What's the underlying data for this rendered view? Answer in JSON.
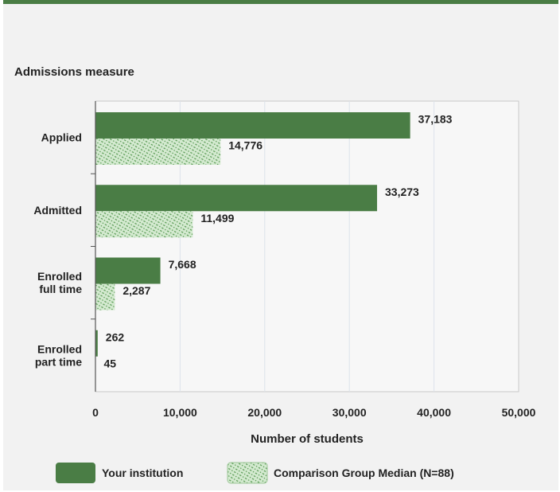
{
  "chart_data": {
    "type": "bar",
    "orientation": "horizontal",
    "title": "Admissions measure",
    "xlabel": "Number of students",
    "ylabel": "",
    "xlim": [
      0,
      50000
    ],
    "x_ticks": [
      "0",
      "10,000",
      "20,000",
      "30,000",
      "40,000",
      "50,000"
    ],
    "grid": true,
    "categories": [
      "Applied",
      "Admitted",
      "Enrolled full time",
      "Enrolled part time"
    ],
    "series": [
      {
        "name": "Your institution",
        "values": [
          37183,
          33273,
          7668,
          262
        ],
        "labels": [
          "37,183",
          "33,273",
          "7,668",
          "262"
        ],
        "color": "#4a7d45",
        "pattern": "solid"
      },
      {
        "name": "Comparison Group Median (N=88)",
        "values": [
          14776,
          11499,
          2287,
          45
        ],
        "labels": [
          "14,776",
          "11,499",
          "2,287",
          "45"
        ],
        "color": "#cfe8cb",
        "pattern": "hatched"
      }
    ],
    "legend_position": "bottom"
  }
}
